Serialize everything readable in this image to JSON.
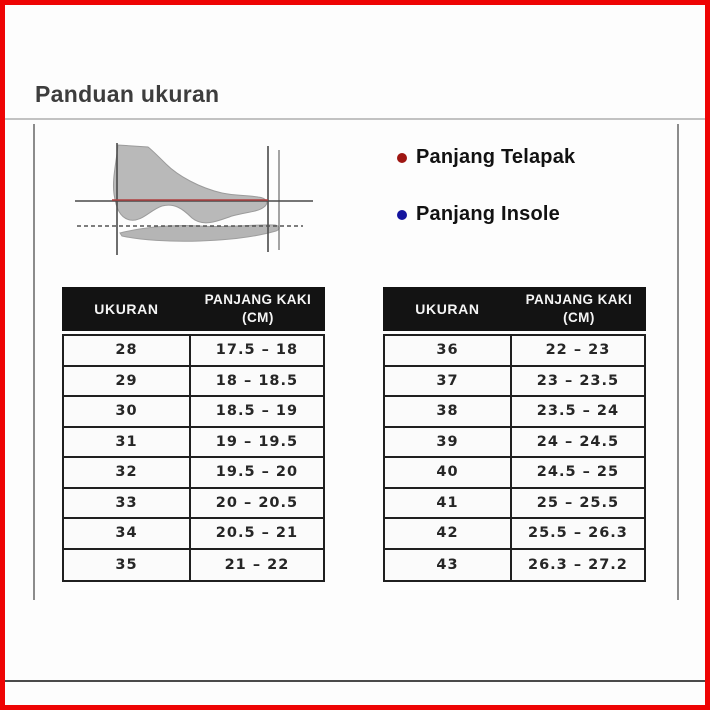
{
  "page": {
    "title": "Panduan ukuran"
  },
  "legend": {
    "items": [
      {
        "label": "Panjang Telapak",
        "bullet_icon": "red-dot-icon",
        "color": "#9e1612"
      },
      {
        "label": "Panjang Insole",
        "bullet_icon": "blue-dot-icon",
        "color": "#14149e"
      }
    ]
  },
  "tables": [
    {
      "name": "sizes-28-35",
      "header": {
        "col1": "UKURAN",
        "col2_line1": "PANJANG KAKI",
        "col2_line2": "(CM)"
      },
      "rows": [
        [
          "28",
          "17.5 – 18"
        ],
        [
          "29",
          "18 – 18.5"
        ],
        [
          "30",
          "18.5 – 19"
        ],
        [
          "31",
          "19 – 19.5"
        ],
        [
          "32",
          "19.5 – 20"
        ],
        [
          "33",
          "20 – 20.5"
        ],
        [
          "34",
          "20.5 – 21"
        ],
        [
          "35",
          "21 – 22"
        ]
      ]
    },
    {
      "name": "sizes-36-43",
      "header": {
        "col1": "UKURAN",
        "col2_line1": "PANJANG KAKI",
        "col2_line2": "(CM)"
      },
      "rows": [
        [
          "36",
          "22 – 23"
        ],
        [
          "37",
          "23 – 23.5"
        ],
        [
          "38",
          "23.5 – 24"
        ],
        [
          "39",
          "24 – 24.5"
        ],
        [
          "40",
          "24.5 – 25"
        ],
        [
          "41",
          "25 – 25.5"
        ],
        [
          "42",
          "25.5 – 26.3"
        ],
        [
          "43",
          "26.3 – 27.2"
        ]
      ]
    }
  ],
  "colors": {
    "frame_border": "#ee0404",
    "table_header_bg": "#131313",
    "table_header_text": "#f5f5f5",
    "table_border": "#1f1f1f",
    "legend_red": "#9e1612",
    "legend_blue": "#14149e",
    "diagram_red_line": "#b04040",
    "foot_fill": "#b9b9b9"
  }
}
